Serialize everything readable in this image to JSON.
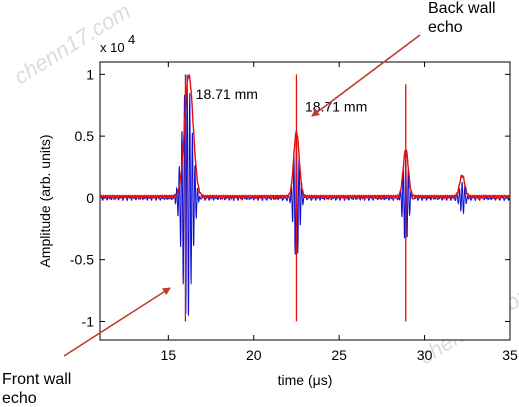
{
  "chart_data": {
    "type": "line",
    "title": "",
    "xlabel": "time (μs)",
    "ylabel": "Amplitude (arb. units)",
    "y_scale_label": "x 10",
    "y_scale_exponent": "4",
    "xlim": [
      11,
      35
    ],
    "ylim": [
      -1.15,
      1.1
    ],
    "xticks": [
      15,
      20,
      25,
      30,
      35
    ],
    "yticks": [
      1,
      0.5,
      0,
      -0.5,
      -1
    ],
    "ytick_labels": [
      "1",
      "0.5",
      "0",
      "-0.5",
      "-1"
    ],
    "grid": false,
    "series": [
      {
        "color": "#1010d0",
        "echoes": [
          {
            "t": 16.1,
            "amp": 1.0,
            "width": 0.55,
            "freq": 6.5
          },
          {
            "t": 22.5,
            "amp": 0.5,
            "width": 0.35,
            "freq": 6.5
          },
          {
            "t": 28.9,
            "amp": 0.36,
            "width": 0.33,
            "freq": 6.5
          },
          {
            "t": 32.2,
            "amp": 0.14,
            "width": 0.3,
            "freq": 6.5
          }
        ]
      },
      {
        "color": "#e01010",
        "envelope_peaks": [
          {
            "t": 16.2,
            "amp": 0.98,
            "width": 0.5
          },
          {
            "t": 22.5,
            "amp": 0.52,
            "width": 0.32
          },
          {
            "t": 28.9,
            "amp": 0.38,
            "width": 0.3
          },
          {
            "t": 32.2,
            "amp": 0.17,
            "width": 0.3
          }
        ],
        "vertical_markers": [
          {
            "t": 16.0,
            "min": -1.0,
            "max": 1.0
          },
          {
            "t": 22.5,
            "min": -1.0,
            "max": 1.0
          },
          {
            "t": 28.9,
            "min": -1.0,
            "max": 0.92
          }
        ]
      }
    ],
    "annotations": [
      {
        "text": "18.71 mm",
        "x": 16.6,
        "y": 0.8
      },
      {
        "text": "18.71 mm",
        "x": 23.0,
        "y": 0.7
      }
    ],
    "callouts": {
      "back_wall": [
        "Back wall",
        "echo"
      ],
      "front_wall": [
        "Front wall",
        "echo"
      ]
    },
    "watermark": "chenn17.com"
  }
}
